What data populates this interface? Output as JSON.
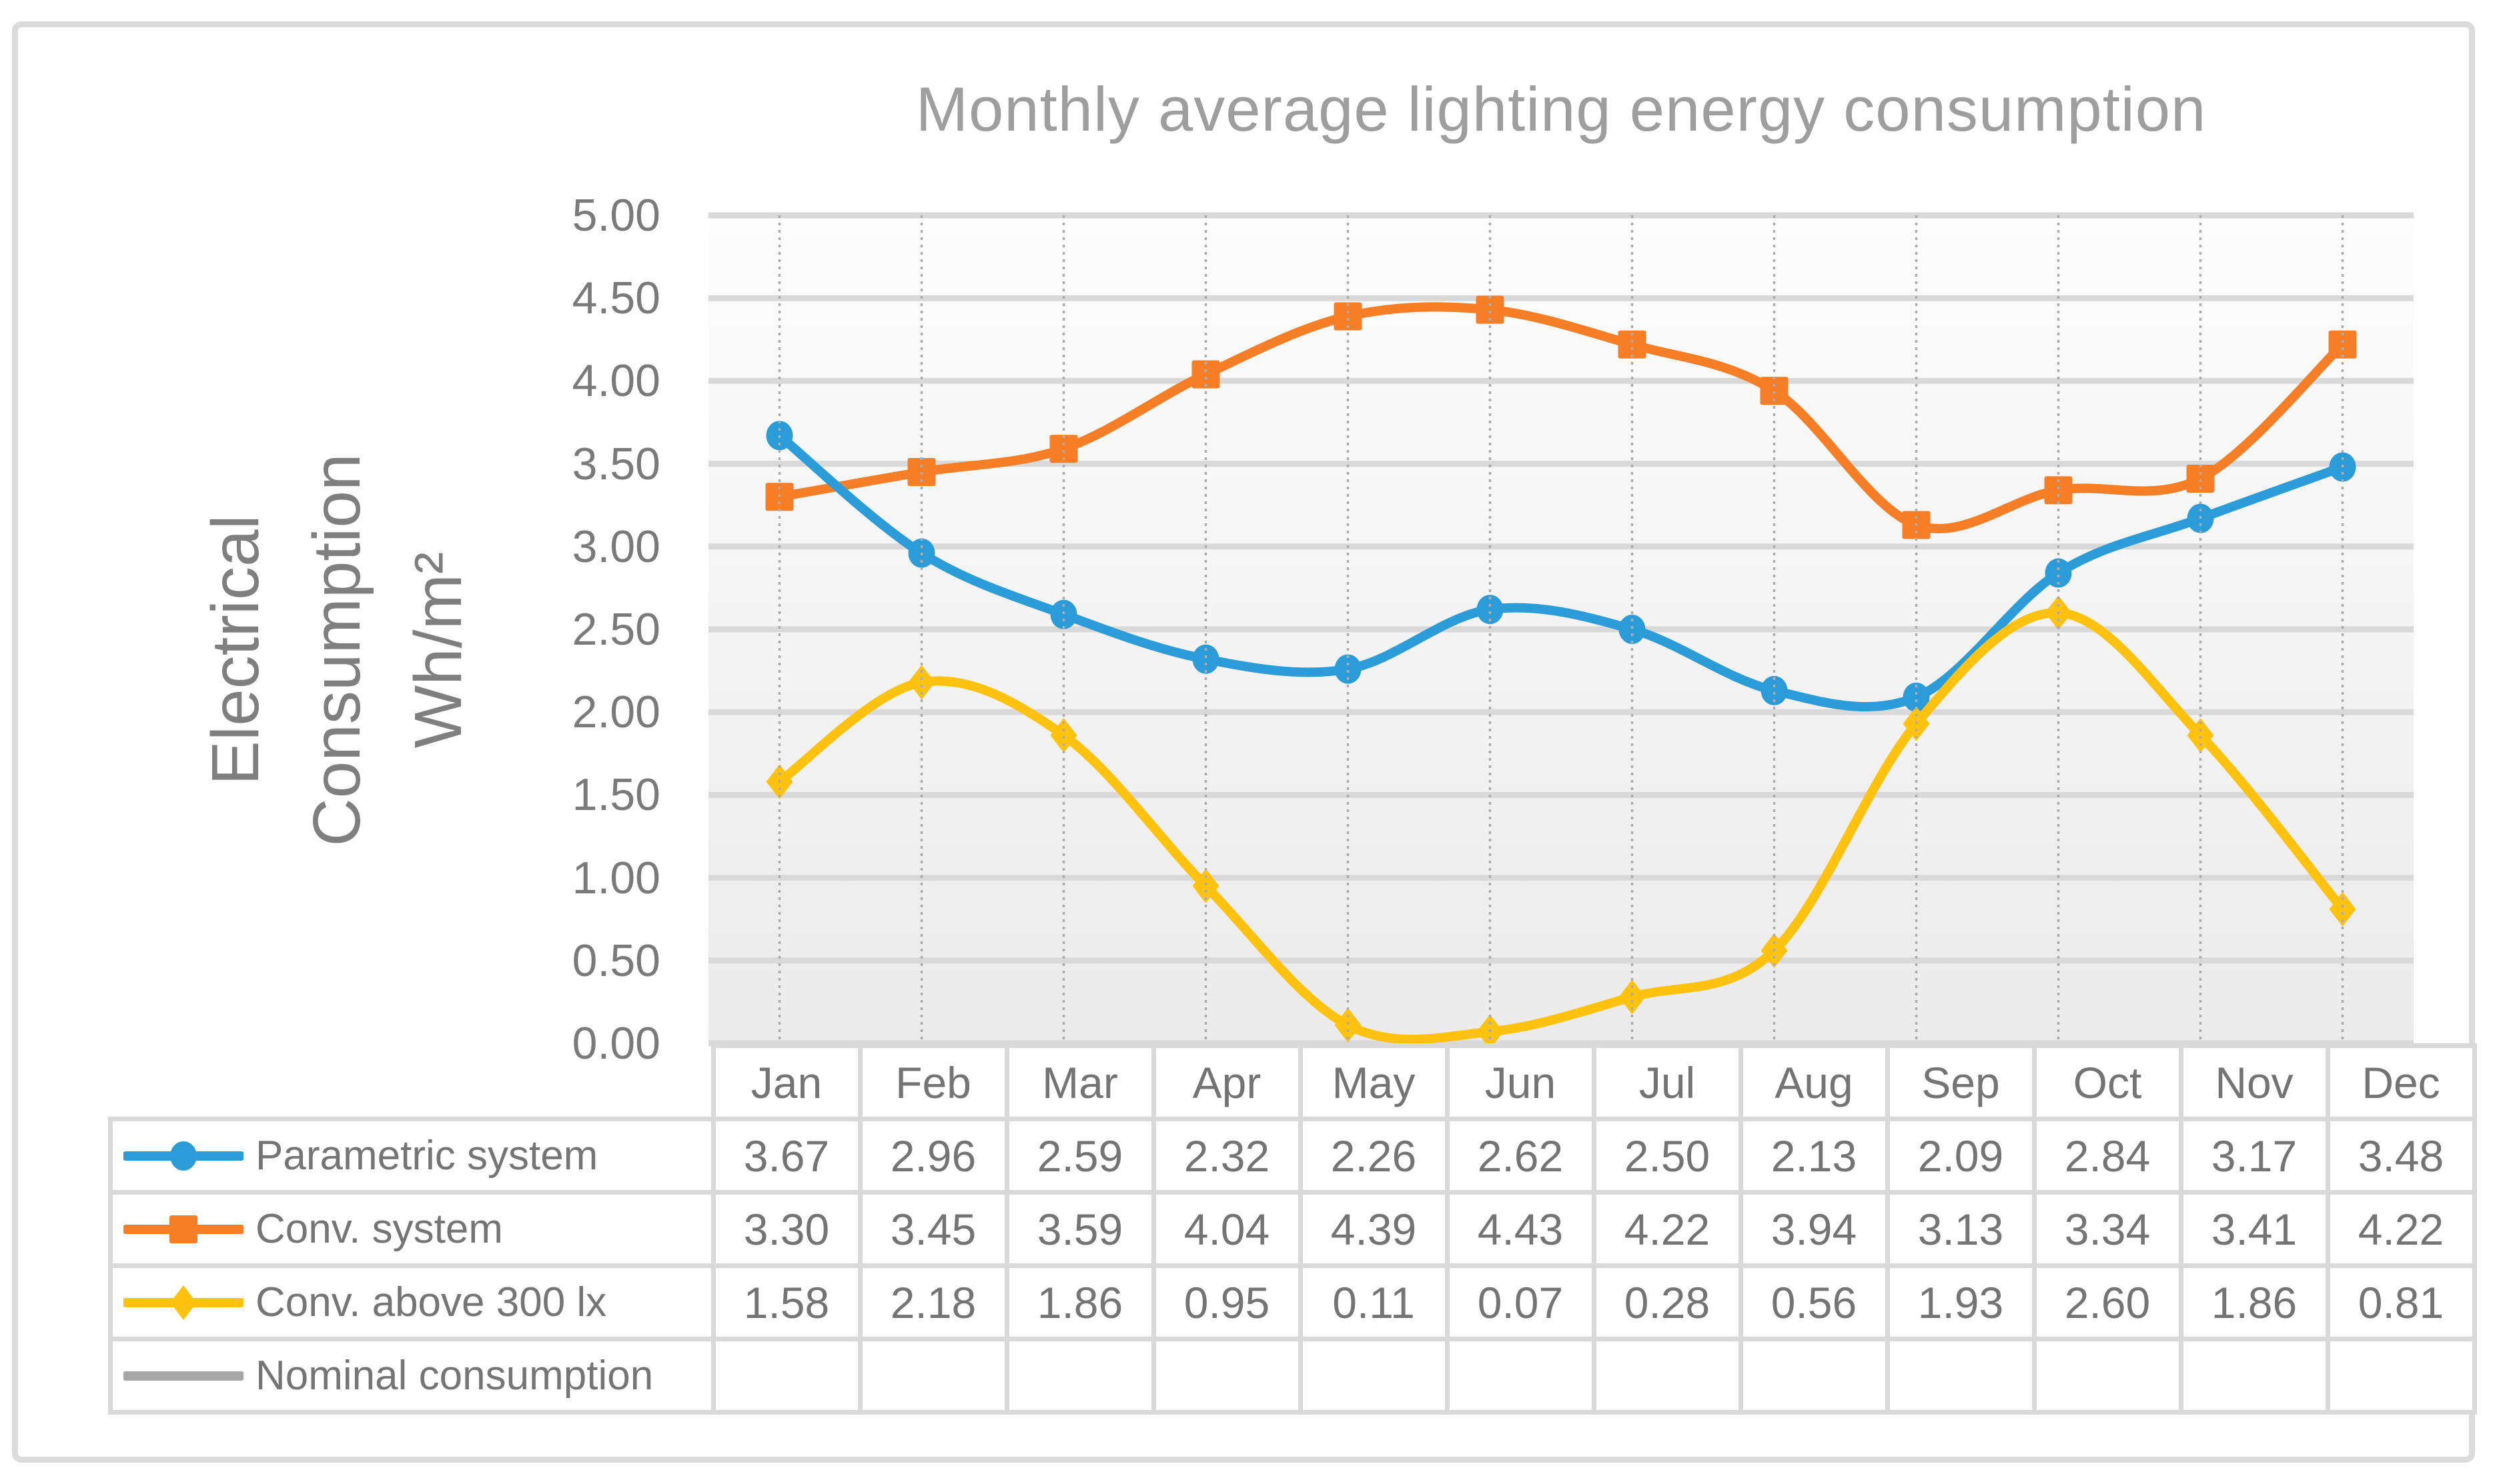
{
  "chart_data": {
    "type": "line",
    "title": "Monthly average lighting energy consumption",
    "categories": [
      "Jan",
      "Feb",
      "Mar",
      "Apr",
      "May",
      "Jun",
      "Jul",
      "Aug",
      "Sep",
      "Oct",
      "Nov",
      "Dec"
    ],
    "series": [
      {
        "name": "Parametric system",
        "marker": "circle",
        "color": "#2B9CD8",
        "values": [
          3.67,
          2.96,
          2.59,
          2.32,
          2.26,
          2.62,
          2.5,
          2.13,
          2.09,
          2.84,
          3.17,
          3.48
        ]
      },
      {
        "name": "Conv. system",
        "marker": "square",
        "color": "#F57E27",
        "values": [
          3.3,
          3.45,
          3.59,
          4.04,
          4.39,
          4.43,
          4.22,
          3.94,
          3.13,
          3.34,
          3.41,
          4.22
        ]
      },
      {
        "name": "Conv. above 300 lx",
        "marker": "diamond",
        "color": "#FFC20E",
        "values": [
          1.58,
          2.18,
          1.86,
          0.95,
          0.11,
          0.07,
          0.28,
          0.56,
          1.93,
          2.6,
          1.86,
          0.81
        ]
      },
      {
        "name": "Nominal consumption",
        "marker": "none",
        "color": "#A6A6A6",
        "values": []
      }
    ],
    "xlabel": "",
    "ylabel": "Electrical Consumption Wh/m²",
    "ylabel_lines": [
      "Electrical",
      "Consumption",
      "Wh/m²"
    ],
    "ylim": [
      0,
      5
    ],
    "ytick_step": 0.5,
    "ytick_format": "2dp",
    "value_format": "2dp",
    "grid": true,
    "vertical_grid": "dashed",
    "grid_color": "#D9D9D9",
    "dashed_grid_color": "#ACACAC",
    "legend_position": "table-left",
    "curve": "smooth"
  }
}
